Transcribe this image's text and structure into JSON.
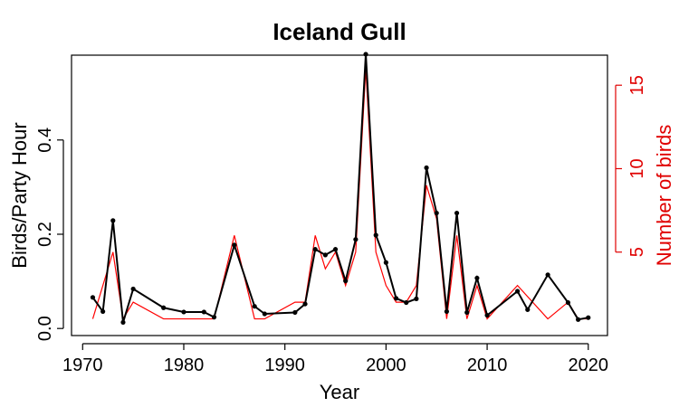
{
  "chart_data": {
    "type": "line",
    "title": "Iceland Gull",
    "xlabel": "Year",
    "ylabel": "Birds/Party Hour",
    "y2label": "Number of birds",
    "xlim": [
      1968.9,
      2021.9
    ],
    "ylim": [
      -0.015,
      0.58
    ],
    "y2lim": [
      0.0,
      16.8
    ],
    "x_ticks": [
      1970,
      1980,
      1990,
      2000,
      2010,
      2020
    ],
    "y_ticks": [
      0.0,
      0.2,
      0.4
    ],
    "y_tick_labels": [
      "0.0",
      "0.2",
      "0.4"
    ],
    "y2_ticks": [
      5,
      10,
      15
    ],
    "grid": false,
    "colors": {
      "series1": "#000000",
      "series2": "#ff0000",
      "right_axis": "#e00000"
    },
    "series": [
      {
        "axis": "left",
        "x": [
          1971,
          1972,
          1973,
          1974,
          1975,
          1978,
          1980,
          1982,
          1983,
          1985,
          1987,
          1988,
          1991,
          1992,
          1993,
          1994,
          1995,
          1996,
          1997,
          1998,
          1999,
          2000,
          2001,
          2002,
          2003,
          2004,
          2005,
          2006,
          2007,
          2008,
          2009,
          2010,
          2013,
          2014,
          2016,
          2018,
          2019,
          2020
        ],
        "values": [
          0.066,
          0.036,
          0.229,
          0.013,
          0.084,
          0.044,
          0.035,
          0.035,
          0.024,
          0.177,
          0.047,
          0.031,
          0.034,
          0.052,
          0.168,
          0.156,
          0.168,
          0.101,
          0.189,
          0.582,
          0.198,
          0.14,
          0.064,
          0.055,
          0.063,
          0.341,
          0.245,
          0.036,
          0.245,
          0.034,
          0.107,
          0.028,
          0.079,
          0.04,
          0.114,
          0.055,
          0.019,
          0.023
        ]
      },
      {
        "axis": "right",
        "x": [
          1971,
          1973,
          1974,
          1975,
          1978,
          1983,
          1985,
          1987,
          1988,
          1991,
          1992,
          1993,
          1994,
          1995,
          1996,
          1997,
          1998,
          1999,
          2000,
          2001,
          2002,
          2003,
          2004,
          2005,
          2006,
          2007,
          2008,
          2009,
          2010,
          2013,
          2016,
          2018,
          2019,
          2020
        ],
        "values": [
          1.0,
          5.0,
          1.0,
          2.0,
          1.0,
          1.0,
          6.0,
          1.0,
          1.0,
          2.0,
          2.0,
          6.0,
          4.0,
          5.0,
          3.0,
          5.0,
          16.0,
          5.0,
          3.0,
          2.0,
          2.0,
          3.0,
          9.0,
          7.0,
          1.0,
          6.0,
          1.0,
          3.0,
          1.0,
          3.0,
          1.0,
          2.0,
          1.0,
          1.0
        ]
      }
    ]
  }
}
